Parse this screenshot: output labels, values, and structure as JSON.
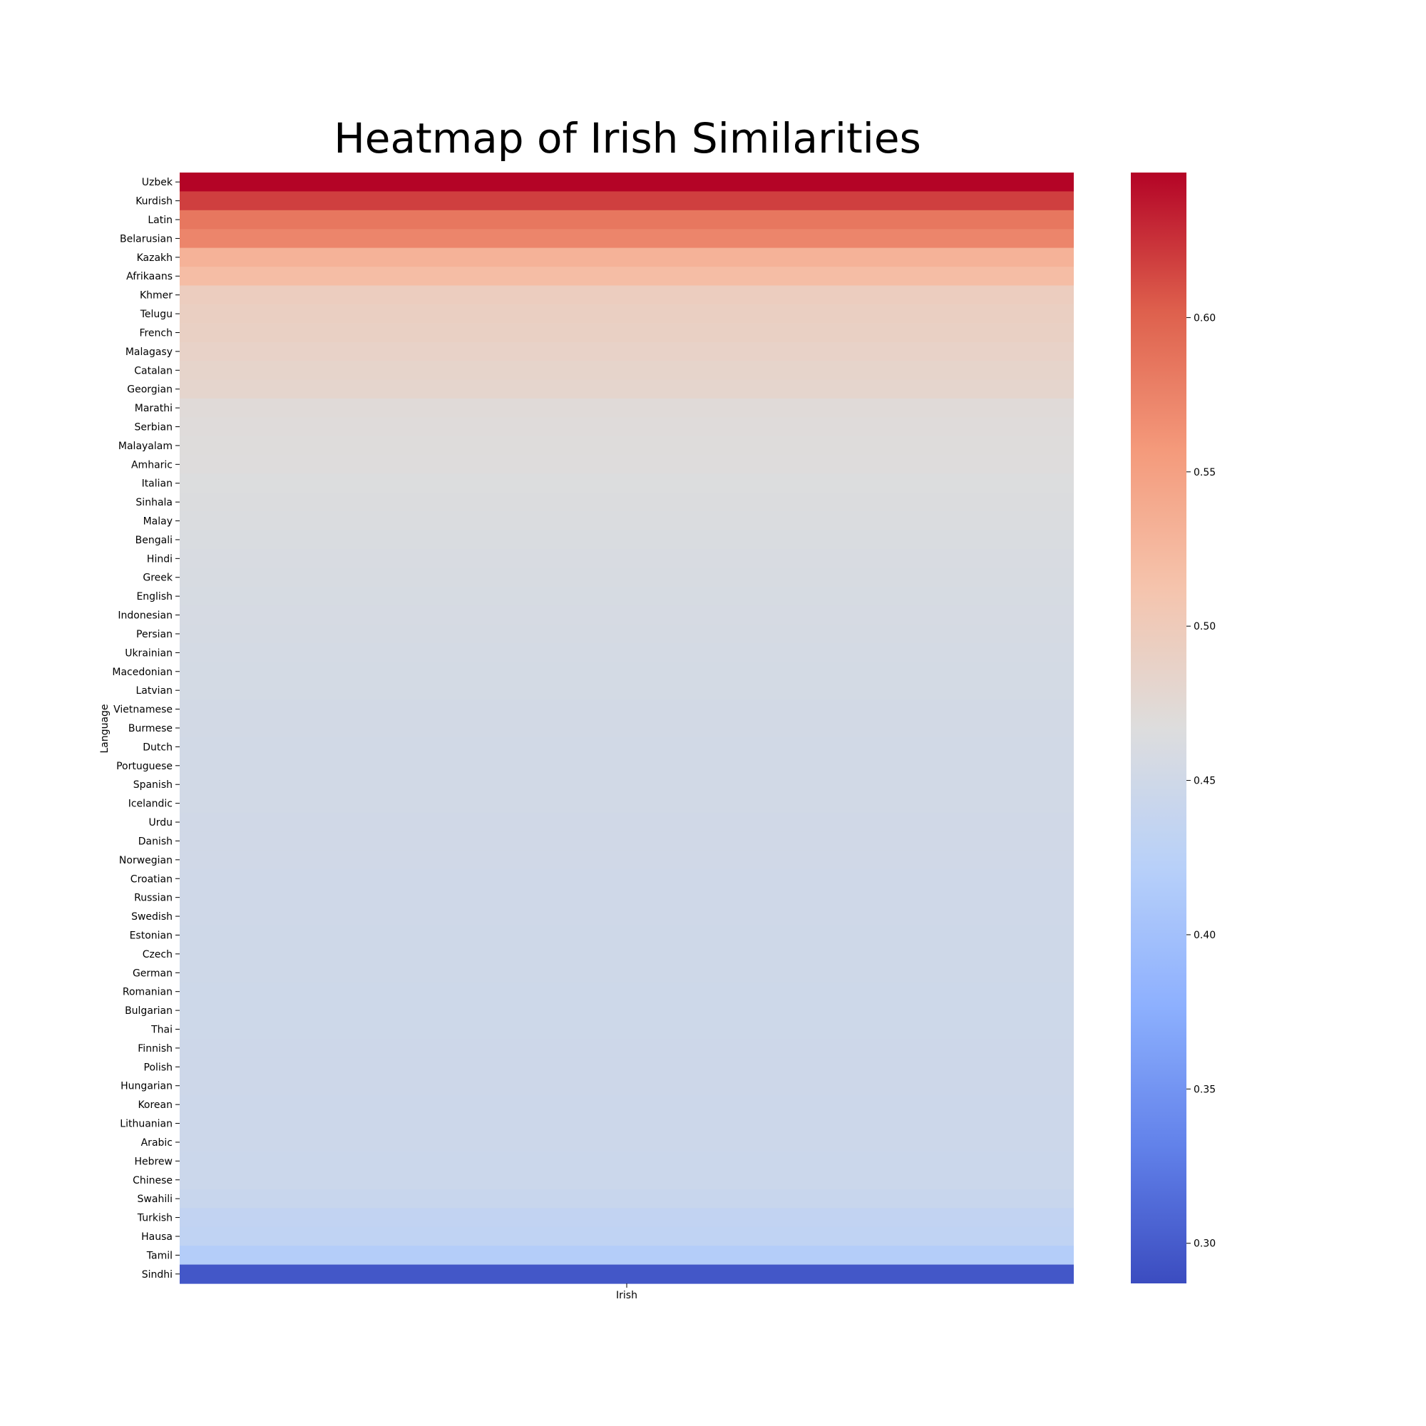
{
  "chart_data": {
    "type": "heatmap",
    "title": "Heatmap of Irish Similarities",
    "xlabel": "",
    "ylabel": "Language",
    "columns": [
      "Irish"
    ],
    "rows": [
      "Uzbek",
      "Kurdish",
      "Latin",
      "Belarusian",
      "Kazakh",
      "Afrikaans",
      "Khmer",
      "Telugu",
      "French",
      "Malagasy",
      "Catalan",
      "Georgian",
      "Marathi",
      "Serbian",
      "Malayalam",
      "Amharic",
      "Italian",
      "Sinhala",
      "Malay",
      "Bengali",
      "Hindi",
      "Greek",
      "English",
      "Indonesian",
      "Persian",
      "Ukrainian",
      "Macedonian",
      "Latvian",
      "Vietnamese",
      "Burmese",
      "Dutch",
      "Portuguese",
      "Spanish",
      "Icelandic",
      "Urdu",
      "Danish",
      "Norwegian",
      "Croatian",
      "Russian",
      "Swedish",
      "Estonian",
      "Czech",
      "German",
      "Romanian",
      "Bulgarian",
      "Thai",
      "Finnish",
      "Polish",
      "Hungarian",
      "Korean",
      "Lithuanian",
      "Arabic",
      "Hebrew",
      "Chinese",
      "Swahili",
      "Turkish",
      "Hausa",
      "Tamil",
      "Sindhi"
    ],
    "values": [
      0.647,
      0.618,
      0.584,
      0.573,
      0.531,
      0.519,
      0.495,
      0.492,
      0.49,
      0.487,
      0.484,
      0.482,
      0.472,
      0.47,
      0.469,
      0.468,
      0.466,
      0.465,
      0.463,
      0.462,
      0.461,
      0.46,
      0.459,
      0.458,
      0.457,
      0.456,
      0.455,
      0.455,
      0.454,
      0.454,
      0.453,
      0.453,
      0.452,
      0.452,
      0.451,
      0.451,
      0.451,
      0.45,
      0.45,
      0.45,
      0.449,
      0.449,
      0.449,
      0.448,
      0.448,
      0.448,
      0.447,
      0.447,
      0.447,
      0.446,
      0.446,
      0.446,
      0.445,
      0.445,
      0.442,
      0.434,
      0.432,
      0.418,
      0.296
    ],
    "colorbar": {
      "colormap": "coolwarm",
      "vmin": 0.287,
      "vmax": 0.647,
      "ticks": [
        0.3,
        0.35,
        0.4,
        0.45,
        0.5,
        0.55,
        0.6
      ],
      "tick_labels": [
        "0.30",
        "0.35",
        "0.40",
        "0.45",
        "0.50",
        "0.55",
        "0.60"
      ]
    }
  }
}
